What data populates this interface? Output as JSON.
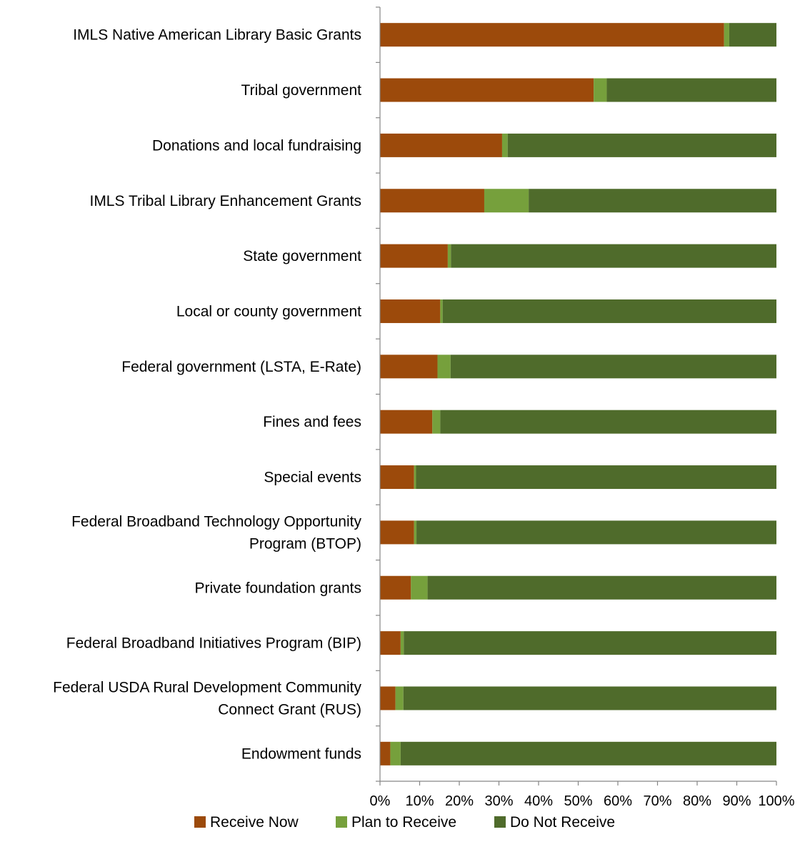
{
  "chart_data": {
    "type": "bar",
    "orientation": "horizontal",
    "stacked": "percent",
    "title": "",
    "xlabel": "",
    "ylabel": "",
    "xlim": [
      0,
      100
    ],
    "x_tick_labels": [
      "0%",
      "10%",
      "20%",
      "30%",
      "40%",
      "50%",
      "60%",
      "70%",
      "80%",
      "90%",
      "100%"
    ],
    "categories": [
      [
        "IMLS Native American Library Basic Grants"
      ],
      [
        "Tribal government"
      ],
      [
        "Donations and local fundraising"
      ],
      [
        "IMLS Tribal Library Enhancement Grants"
      ],
      [
        "State government"
      ],
      [
        "Local or county government"
      ],
      [
        "Federal government (LSTA, E-Rate)"
      ],
      [
        "Fines and fees"
      ],
      [
        "Special events"
      ],
      [
        "Federal Broadband Technology Opportunity",
        "Program (BTOP)"
      ],
      [
        "Private foundation grants"
      ],
      [
        "Federal Broadband Initiatives Program (BIP)"
      ],
      [
        "Federal USDA Rural Development Community",
        "Connect Grant (RUS)"
      ],
      [
        "Endowment funds"
      ]
    ],
    "series": [
      {
        "name": "Receive Now",
        "color": "#9C4A0B",
        "values": [
          86.8,
          53.9,
          30.8,
          26.3,
          17.1,
          15.2,
          14.5,
          13.2,
          8.6,
          8.6,
          7.8,
          5.2,
          3.9,
          2.6
        ]
      },
      {
        "name": "Plan to Receive",
        "color": "#76A03C",
        "values": [
          1.3,
          3.3,
          1.4,
          11.2,
          0.8,
          0.6,
          3.3,
          2.0,
          0.5,
          0.6,
          4.2,
          0.8,
          2.0,
          2.6
        ]
      },
      {
        "name": "Do Not Receive",
        "color": "#4F6B2B",
        "values": [
          11.9,
          42.8,
          67.8,
          62.5,
          82.1,
          84.2,
          82.2,
          84.8,
          90.9,
          90.8,
          88.0,
          94.0,
          94.1,
          94.8
        ]
      }
    ],
    "grid": false,
    "legend_position": "bottom"
  }
}
